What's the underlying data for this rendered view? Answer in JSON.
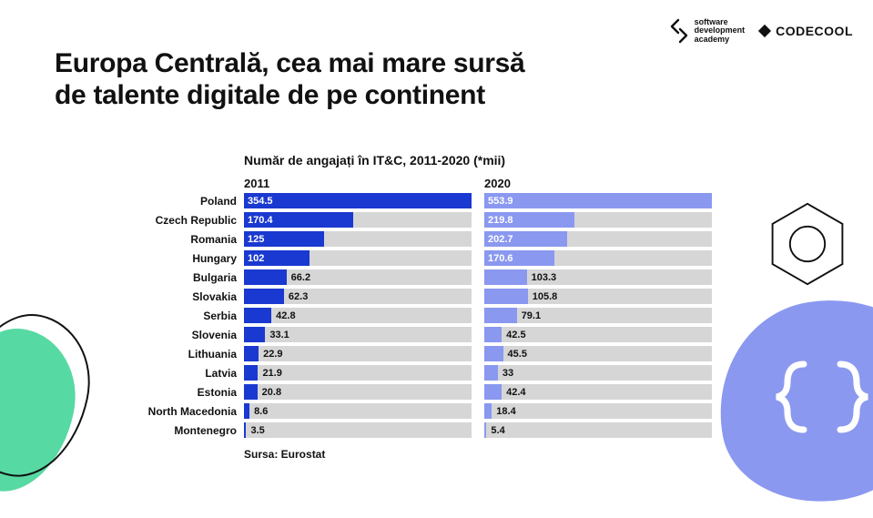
{
  "logos": {
    "sda_text": "software\ndevelopment\nacademy",
    "codecool": "CODECOOL"
  },
  "headline": "Europa Centrală, cea mai mare sursă\nde talente digitale de pe continent",
  "chart": {
    "type": "bar",
    "title": "Număr de angajați în IT&C, 2011-2020 (*mii)",
    "year_left_label": "2011",
    "year_right_label": "2020",
    "track_color": "#d6d6d6",
    "color_2011": "#1a39d0",
    "color_2020": "#8a98f0",
    "leftMax": 354.5,
    "rightMax": 553.9,
    "label_fontsize": 12,
    "title_fontsize": 14,
    "value_inside_color": "#ffffff",
    "value_outside_color": "#111111",
    "inside_threshold_pct": 22,
    "rows": [
      {
        "country": "Poland",
        "y2011": 354.5,
        "y2020": 553.9
      },
      {
        "country": "Czech Republic",
        "y2011": 170.4,
        "y2020": 219.8
      },
      {
        "country": "Romania",
        "y2011": 125,
        "y2020": 202.7
      },
      {
        "country": "Hungary",
        "y2011": 102,
        "y2020": 170.6
      },
      {
        "country": "Bulgaria",
        "y2011": 66.2,
        "y2020": 103.3
      },
      {
        "country": "Slovakia",
        "y2011": 62.3,
        "y2020": 105.8
      },
      {
        "country": "Serbia",
        "y2011": 42.8,
        "y2020": 79.1
      },
      {
        "country": "Slovenia",
        "y2011": 33.1,
        "y2020": 42.5
      },
      {
        "country": "Lithuania",
        "y2011": 22.9,
        "y2020": 45.5
      },
      {
        "country": "Latvia",
        "y2011": 21.9,
        "y2020": 33
      },
      {
        "country": "Estonia",
        "y2011": 20.8,
        "y2020": 42.4
      },
      {
        "country": "North Macedonia",
        "y2011": 8.6,
        "y2020": 18.4
      },
      {
        "country": "Montenegro",
        "y2011": 3.5,
        "y2020": 5.4
      }
    ],
    "source": "Sursa: Eurostat"
  },
  "decor": {
    "left_blob_color": "#57d9a3",
    "right_blob_color": "#8a98f0",
    "right_brackets_color": "#ffffff",
    "hex_stroke": "#111111"
  }
}
